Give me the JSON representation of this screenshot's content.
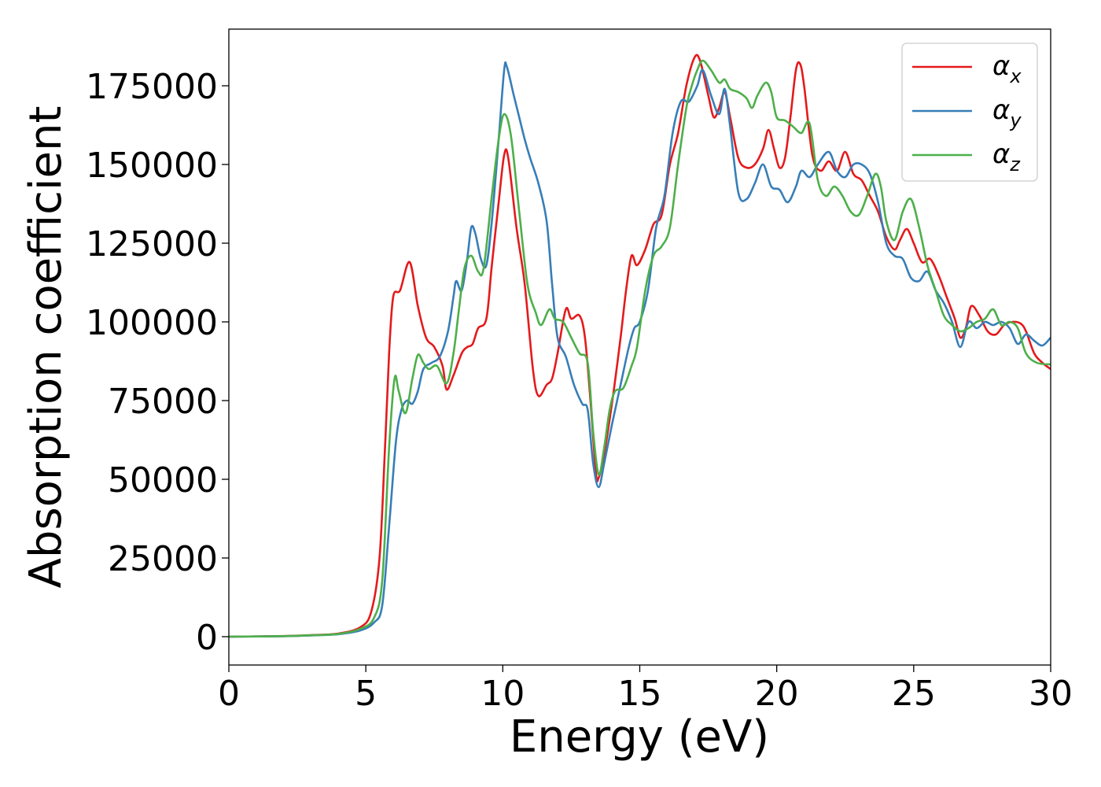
{
  "chart_data": {
    "type": "line",
    "xlabel": "Energy (eV)",
    "ylabel": "Absorption coefficient",
    "xlim": [
      0,
      30
    ],
    "ylim": [
      -9000,
      193000
    ],
    "xticks": [
      0,
      5,
      10,
      15,
      20,
      25,
      30
    ],
    "xtick_labels": [
      "0",
      "5",
      "10",
      "15",
      "20",
      "25",
      "30"
    ],
    "yticks": [
      0,
      25000,
      50000,
      75000,
      100000,
      125000,
      150000,
      175000
    ],
    "ytick_labels": [
      "0",
      "25000",
      "50000",
      "75000",
      "100000",
      "125000",
      "150000",
      "175000"
    ],
    "grid": false,
    "legend_position": "top-right",
    "series": [
      {
        "name": "α",
        "subscript": "x",
        "color": "#e41a1c",
        "points": [
          [
            0,
            0
          ],
          [
            2,
            200
          ],
          [
            3,
            500
          ],
          [
            4,
            1000
          ],
          [
            4.8,
            3000
          ],
          [
            5.2,
            8000
          ],
          [
            5.5,
            25000
          ],
          [
            5.7,
            60000
          ],
          [
            5.85,
            90000
          ],
          [
            6.0,
            108000
          ],
          [
            6.25,
            110000
          ],
          [
            6.6,
            119000
          ],
          [
            6.9,
            105000
          ],
          [
            7.2,
            95000
          ],
          [
            7.5,
            92000
          ],
          [
            7.8,
            86000
          ],
          [
            7.95,
            78500
          ],
          [
            8.2,
            83000
          ],
          [
            8.5,
            90000
          ],
          [
            8.7,
            92000
          ],
          [
            8.9,
            93000
          ],
          [
            9.1,
            98000
          ],
          [
            9.4,
            101000
          ],
          [
            9.6,
            118000
          ],
          [
            9.85,
            138000
          ],
          [
            10.05,
            153000
          ],
          [
            10.2,
            152000
          ],
          [
            10.5,
            130000
          ],
          [
            10.8,
            112000
          ],
          [
            11.1,
            85000
          ],
          [
            11.3,
            76500
          ],
          [
            11.6,
            80000
          ],
          [
            11.8,
            82000
          ],
          [
            12.0,
            90000
          ],
          [
            12.3,
            104000
          ],
          [
            12.5,
            101000
          ],
          [
            12.8,
            102000
          ],
          [
            13.0,
            95000
          ],
          [
            13.2,
            75000
          ],
          [
            13.4,
            52000
          ],
          [
            13.5,
            50500
          ],
          [
            13.7,
            58000
          ],
          [
            14.0,
            75000
          ],
          [
            14.3,
            95000
          ],
          [
            14.5,
            110000
          ],
          [
            14.7,
            121000
          ],
          [
            14.9,
            118000
          ],
          [
            15.2,
            123000
          ],
          [
            15.5,
            131000
          ],
          [
            15.8,
            134000
          ],
          [
            16.1,
            150000
          ],
          [
            16.4,
            160000
          ],
          [
            16.7,
            175000
          ],
          [
            17.0,
            184000
          ],
          [
            17.2,
            183000
          ],
          [
            17.5,
            172000
          ],
          [
            17.7,
            165000
          ],
          [
            17.9,
            168000
          ],
          [
            18.1,
            173000
          ],
          [
            18.3,
            165000
          ],
          [
            18.6,
            152000
          ],
          [
            18.9,
            149000
          ],
          [
            19.2,
            150000
          ],
          [
            19.5,
            155000
          ],
          [
            19.7,
            161000
          ],
          [
            19.9,
            155000
          ],
          [
            20.1,
            149000
          ],
          [
            20.3,
            152000
          ],
          [
            20.5,
            165000
          ],
          [
            20.7,
            180000
          ],
          [
            20.85,
            182000
          ],
          [
            21.0,
            175000
          ],
          [
            21.3,
            153000
          ],
          [
            21.6,
            148000
          ],
          [
            21.9,
            151000
          ],
          [
            22.2,
            148000
          ],
          [
            22.5,
            154000
          ],
          [
            22.8,
            147000
          ],
          [
            23.1,
            145000
          ],
          [
            23.4,
            140000
          ],
          [
            23.7,
            135000
          ],
          [
            24.0,
            127000
          ],
          [
            24.3,
            123000
          ],
          [
            24.5,
            126000
          ],
          [
            24.75,
            129500
          ],
          [
            25.0,
            125000
          ],
          [
            25.3,
            119000
          ],
          [
            25.6,
            120000
          ],
          [
            25.9,
            115000
          ],
          [
            26.2,
            108000
          ],
          [
            26.5,
            101000
          ],
          [
            26.7,
            95000
          ],
          [
            26.9,
            98000
          ],
          [
            27.1,
            105000
          ],
          [
            27.4,
            102000
          ],
          [
            27.7,
            97000
          ],
          [
            28.0,
            96000
          ],
          [
            28.3,
            99000
          ],
          [
            28.6,
            100000
          ],
          [
            28.9,
            99500
          ],
          [
            29.1,
            97000
          ],
          [
            29.4,
            90000
          ],
          [
            29.7,
            87000
          ],
          [
            30.0,
            85000
          ]
        ]
      },
      {
        "name": "α",
        "subscript": "y",
        "color": "#377eb8",
        "points": [
          [
            0,
            0
          ],
          [
            2,
            150
          ],
          [
            3,
            400
          ],
          [
            4,
            800
          ],
          [
            4.8,
            2000
          ],
          [
            5.3,
            4500
          ],
          [
            5.6,
            10000
          ],
          [
            5.85,
            35000
          ],
          [
            6.1,
            62000
          ],
          [
            6.3,
            72000
          ],
          [
            6.5,
            75000
          ],
          [
            6.7,
            74000
          ],
          [
            6.9,
            78000
          ],
          [
            7.1,
            85000
          ],
          [
            7.4,
            87000
          ],
          [
            7.7,
            89000
          ],
          [
            8.0,
            97000
          ],
          [
            8.2,
            108000
          ],
          [
            8.3,
            113000
          ],
          [
            8.5,
            110000
          ],
          [
            8.7,
            120000
          ],
          [
            8.85,
            130000
          ],
          [
            9.0,
            128000
          ],
          [
            9.2,
            120000
          ],
          [
            9.4,
            118000
          ],
          [
            9.6,
            132000
          ],
          [
            9.85,
            158000
          ],
          [
            10.05,
            180000
          ],
          [
            10.15,
            181000
          ],
          [
            10.4,
            172000
          ],
          [
            10.6,
            165000
          ],
          [
            10.8,
            158000
          ],
          [
            11.0,
            152000
          ],
          [
            11.3,
            144000
          ],
          [
            11.6,
            132000
          ],
          [
            11.8,
            112000
          ],
          [
            12.0,
            95000
          ],
          [
            12.3,
            89000
          ],
          [
            12.6,
            80000
          ],
          [
            12.9,
            74000
          ],
          [
            13.1,
            72000
          ],
          [
            13.3,
            55000
          ],
          [
            13.5,
            47500
          ],
          [
            13.7,
            55000
          ],
          [
            14.0,
            68000
          ],
          [
            14.3,
            80000
          ],
          [
            14.6,
            92000
          ],
          [
            14.8,
            98000
          ],
          [
            15.0,
            100000
          ],
          [
            15.3,
            110000
          ],
          [
            15.6,
            130000
          ],
          [
            15.9,
            140000
          ],
          [
            16.2,
            160000
          ],
          [
            16.5,
            170000
          ],
          [
            16.8,
            170000
          ],
          [
            17.1,
            175000
          ],
          [
            17.3,
            180000
          ],
          [
            17.6,
            172000
          ],
          [
            17.9,
            166000
          ],
          [
            18.1,
            174000
          ],
          [
            18.3,
            162000
          ],
          [
            18.6,
            141000
          ],
          [
            18.9,
            139000
          ],
          [
            19.2,
            144000
          ],
          [
            19.5,
            150000
          ],
          [
            19.8,
            143000
          ],
          [
            20.1,
            142000
          ],
          [
            20.4,
            138000
          ],
          [
            20.7,
            143000
          ],
          [
            20.9,
            148000
          ],
          [
            21.2,
            146000
          ],
          [
            21.5,
            150000
          ],
          [
            21.9,
            154000
          ],
          [
            22.2,
            148000
          ],
          [
            22.5,
            146000
          ],
          [
            22.8,
            150000
          ],
          [
            23.1,
            150000
          ],
          [
            23.4,
            147000
          ],
          [
            23.7,
            138000
          ],
          [
            24.0,
            125000
          ],
          [
            24.3,
            121000
          ],
          [
            24.6,
            120000
          ],
          [
            24.9,
            114000
          ],
          [
            25.2,
            113000
          ],
          [
            25.5,
            116000
          ],
          [
            25.8,
            110000
          ],
          [
            26.1,
            106000
          ],
          [
            26.4,
            100000
          ],
          [
            26.7,
            92000
          ],
          [
            27.0,
            100000
          ],
          [
            27.3,
            98000
          ],
          [
            27.6,
            100000
          ],
          [
            27.9,
            99000
          ],
          [
            28.2,
            100000
          ],
          [
            28.5,
            98000
          ],
          [
            28.8,
            93000
          ],
          [
            29.1,
            96000
          ],
          [
            29.4,
            94000
          ],
          [
            29.7,
            92500
          ],
          [
            30.0,
            95000
          ]
        ]
      },
      {
        "name": "α",
        "subscript": "z",
        "color": "#4daf4a",
        "points": [
          [
            0,
            0
          ],
          [
            2,
            180
          ],
          [
            3,
            450
          ],
          [
            4,
            900
          ],
          [
            4.8,
            2500
          ],
          [
            5.3,
            6000
          ],
          [
            5.6,
            18000
          ],
          [
            5.85,
            60000
          ],
          [
            6.05,
            82000
          ],
          [
            6.2,
            78000
          ],
          [
            6.45,
            71000
          ],
          [
            6.7,
            82000
          ],
          [
            6.9,
            89500
          ],
          [
            7.1,
            87000
          ],
          [
            7.3,
            85000
          ],
          [
            7.6,
            86000
          ],
          [
            7.95,
            80500
          ],
          [
            8.2,
            90000
          ],
          [
            8.4,
            104000
          ],
          [
            8.6,
            117000
          ],
          [
            8.85,
            121000
          ],
          [
            9.1,
            116000
          ],
          [
            9.3,
            117000
          ],
          [
            9.6,
            140000
          ],
          [
            9.85,
            158000
          ],
          [
            10.05,
            166000
          ],
          [
            10.3,
            159000
          ],
          [
            10.6,
            135000
          ],
          [
            10.9,
            112000
          ],
          [
            11.2,
            103000
          ],
          [
            11.4,
            99000
          ],
          [
            11.7,
            104000
          ],
          [
            11.9,
            101000
          ],
          [
            12.2,
            100000
          ],
          [
            12.5,
            95000
          ],
          [
            12.8,
            90000
          ],
          [
            13.1,
            87000
          ],
          [
            13.3,
            65000
          ],
          [
            13.5,
            51500
          ],
          [
            13.7,
            60000
          ],
          [
            13.9,
            72000
          ],
          [
            14.1,
            78000
          ],
          [
            14.4,
            79000
          ],
          [
            14.7,
            86000
          ],
          [
            14.9,
            92000
          ],
          [
            15.2,
            110000
          ],
          [
            15.5,
            121000
          ],
          [
            15.8,
            124000
          ],
          [
            16.1,
            130000
          ],
          [
            16.4,
            150000
          ],
          [
            16.7,
            168000
          ],
          [
            16.9,
            175000
          ],
          [
            17.1,
            180000
          ],
          [
            17.3,
            183000
          ],
          [
            17.6,
            180000
          ],
          [
            17.9,
            176000
          ],
          [
            18.1,
            177000
          ],
          [
            18.3,
            174000
          ],
          [
            18.6,
            173000
          ],
          [
            18.9,
            171000
          ],
          [
            19.1,
            168000
          ],
          [
            19.3,
            172000
          ],
          [
            19.6,
            176000
          ],
          [
            19.8,
            173000
          ],
          [
            20.0,
            165000
          ],
          [
            20.3,
            164000
          ],
          [
            20.6,
            162000
          ],
          [
            20.9,
            160000
          ],
          [
            21.2,
            163000
          ],
          [
            21.5,
            145000
          ],
          [
            21.8,
            140000
          ],
          [
            22.1,
            143000
          ],
          [
            22.4,
            140000
          ],
          [
            22.7,
            135000
          ],
          [
            23.0,
            134000
          ],
          [
            23.3,
            140000
          ],
          [
            23.6,
            147000
          ],
          [
            23.8,
            143000
          ],
          [
            24.0,
            132000
          ],
          [
            24.3,
            126000
          ],
          [
            24.6,
            135000
          ],
          [
            24.9,
            139000
          ],
          [
            25.2,
            130000
          ],
          [
            25.5,
            118000
          ],
          [
            25.8,
            110000
          ],
          [
            26.1,
            102000
          ],
          [
            26.4,
            99000
          ],
          [
            26.7,
            97000
          ],
          [
            27.0,
            98000
          ],
          [
            27.3,
            100000
          ],
          [
            27.6,
            101000
          ],
          [
            27.9,
            104000
          ],
          [
            28.2,
            99000
          ],
          [
            28.5,
            100000
          ],
          [
            28.8,
            98000
          ],
          [
            29.1,
            90000
          ],
          [
            29.5,
            87000
          ],
          [
            30.0,
            86500
          ]
        ]
      }
    ]
  }
}
